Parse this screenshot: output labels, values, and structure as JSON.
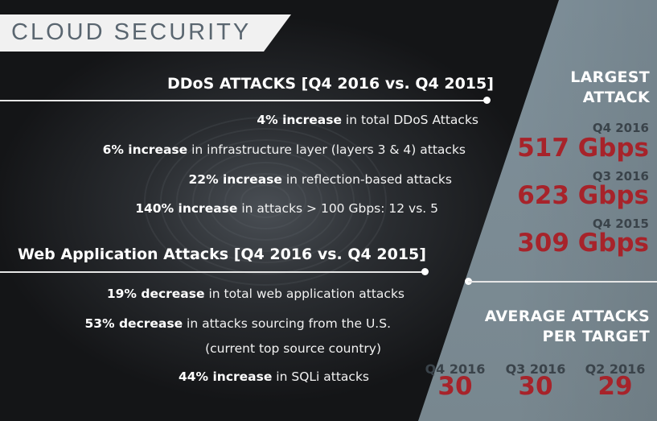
{
  "banner": {
    "title": "CLOUD SECURITY"
  },
  "ddos": {
    "heading": "DDoS ATTACKS [Q4 2016 vs. Q4 2015]",
    "items": [
      {
        "bold": "4% increase",
        "rest": " in total DDoS Attacks"
      },
      {
        "bold": "6% increase",
        "rest": " in infrastructure layer (layers 3 & 4) attacks"
      },
      {
        "bold": "22% increase",
        "rest": " in reflection-based attacks"
      },
      {
        "bold": "140% increase",
        "rest": " in attacks  > 100 Gbps: 12 vs. 5"
      }
    ]
  },
  "web": {
    "heading": "Web Application Attacks [Q4 2016 vs. Q4 2015]",
    "items": [
      {
        "bold": "19% decrease",
        "rest": " in total web application attacks"
      },
      {
        "bold": "53% decrease",
        "rest": " in attacks sourcing from the U.S."
      },
      {
        "bold": "",
        "rest": "(current top source country)"
      },
      {
        "bold": "44% increase",
        "rest": " in SQLi attacks"
      }
    ]
  },
  "largest": {
    "heading_line1": "LARGEST",
    "heading_line2": "ATTACK",
    "entries": [
      {
        "period": "Q4 2016",
        "value": "517 Gbps"
      },
      {
        "period": "Q3 2016",
        "value": "623 Gbps"
      },
      {
        "period": "Q4 2015",
        "value": "309 Gbps"
      }
    ]
  },
  "average": {
    "heading_line1": "AVERAGE ATTACKS",
    "heading_line2": "PER TARGET",
    "entries": [
      {
        "period": "Q4 2016",
        "value": "30"
      },
      {
        "period": "Q3 2016",
        "value": "30"
      },
      {
        "period": "Q2 2016",
        "value": "29"
      }
    ]
  },
  "colors": {
    "accent_red": "#a7232a",
    "panel_grey": "#7f909a",
    "banner_bg": "#f1f1f1"
  }
}
